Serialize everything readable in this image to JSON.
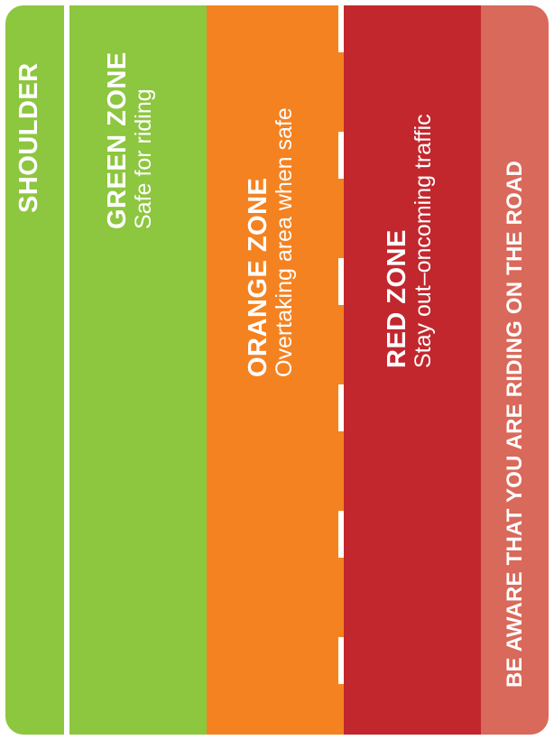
{
  "colors": {
    "shoulder": "#8dc63f",
    "green_zone": "#8dc63f",
    "orange_zone": "#f58220",
    "red_zone": "#c1272d",
    "road_band": "#d9695a",
    "lines": "#ffffff"
  },
  "zones": {
    "shoulder": {
      "title": "SHOULDER"
    },
    "green": {
      "title": "GREEN ZONE",
      "subtitle": "Safe for riding"
    },
    "orange": {
      "title": "ORANGE ZONE",
      "subtitle": "Overtaking area when safe"
    },
    "red": {
      "title": "RED ZONE",
      "subtitle": "Stay out–oncoming traffic"
    }
  },
  "footer": {
    "message": "BE AWARE THAT YOU ARE RIDING ON THE ROAD"
  }
}
